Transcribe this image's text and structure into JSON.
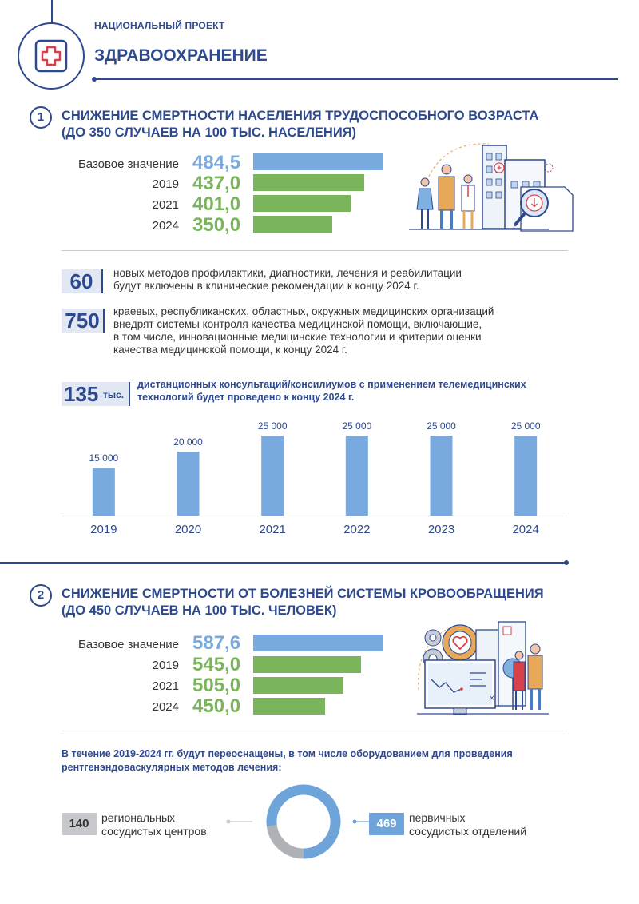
{
  "header": {
    "subtitle": "НАЦИОНАЛЬНЫЙ ПРОЕКТ",
    "title": "ЗДРАВООХРАНЕНИЕ"
  },
  "section1": {
    "number": "1",
    "title_line1": "СНИЖЕНИЕ СМЕРТНОСТИ НАСЕЛЕНИЯ ТРУДОСПОСОБНОГО ВОЗРАСТА",
    "title_line2": "(ДО 350 СЛУЧАЕВ НА 100 ТЫС. НАСЕЛЕНИЯ)",
    "rows": [
      {
        "label": "Базовое значение",
        "value": "484,5",
        "num": 484.5,
        "color": "#78aadf"
      },
      {
        "label": "2019",
        "value": "437,0",
        "num": 437.0,
        "color": "#7ab55c"
      },
      {
        "label": "2021",
        "value": "401,0",
        "num": 401.0,
        "color": "#7ab55c"
      },
      {
        "label": "2024",
        "value": "350,0",
        "num": 350.0,
        "color": "#7ab55c"
      }
    ],
    "stats": [
      {
        "number": "60",
        "text_line1": "новых методов профилактики, диагностики, лечения и реабилитации",
        "text_line2": "будут включены в клинические рекомендации к концу 2024 г."
      },
      {
        "number": "750",
        "text_line1": "краевых, республиканских, областных, окружных медицинских организаций",
        "text_line2": "внедрят системы контроля качества медицинской помощи, включающие,",
        "text_line3": "в том числе, инновационные медицинские технологии и критерии оценки",
        "text_line4": "качества медицинской помощи, к концу 2024 г."
      }
    ],
    "telemed": {
      "number": "135",
      "unit": "тыс.",
      "text_line1": "дистанционных консультаций/консилиумов с применением телемедицинских",
      "text_line2": "технологий будет проведено к концу 2024 г."
    }
  },
  "chart_data": {
    "type": "bar",
    "categories": [
      "2019",
      "2020",
      "2021",
      "2022",
      "2023",
      "2024"
    ],
    "values": [
      15000,
      20000,
      25000,
      25000,
      25000,
      25000
    ],
    "labels": [
      "15 000",
      "20 000",
      "25 000",
      "25 000",
      "25 000",
      "25 000"
    ],
    "ylim": [
      0,
      25000
    ],
    "bar_color": "#78aadf",
    "grid": false,
    "legend": "none"
  },
  "section2": {
    "number": "2",
    "title_line1": "СНИЖЕНИЕ СМЕРТНОСТИ ОТ БОЛЕЗНЕЙ СИСТЕМЫ КРОВООБРАЩЕНИЯ",
    "title_line2": "(ДО 450 СЛУЧАЕВ НА 100 ТЫС. ЧЕЛОВЕК)",
    "rows": [
      {
        "label": "Базовое значение",
        "value": "587,6",
        "num": 587.6,
        "color": "#78aadf"
      },
      {
        "label": "2019",
        "value": "545,0",
        "num": 545.0,
        "color": "#7ab55c"
      },
      {
        "label": "2021",
        "value": "505,0",
        "num": 505.0,
        "color": "#7ab55c"
      },
      {
        "label": "2024",
        "value": "450,0",
        "num": 450.0,
        "color": "#7ab55c"
      }
    ],
    "reequip_line1": "В течение 2019-2024 гг. будут переоснащены, в том числе оборудованием для проведения",
    "reequip_line2": "рентгенэндоваскулярных методов лечения:",
    "regional": {
      "number": "140",
      "label_line1": "региональных",
      "label_line2": "сосудистых центров",
      "color": "#aeb1b6"
    },
    "primary": {
      "number": "469",
      "label_line1": "первичных",
      "label_line2": "сосудистых отделений",
      "color": "#6ea4da"
    }
  },
  "colors": {
    "navy": "#2e4a8f",
    "blue": "#78aadf",
    "green": "#7ab55c",
    "red": "#d9414a"
  }
}
